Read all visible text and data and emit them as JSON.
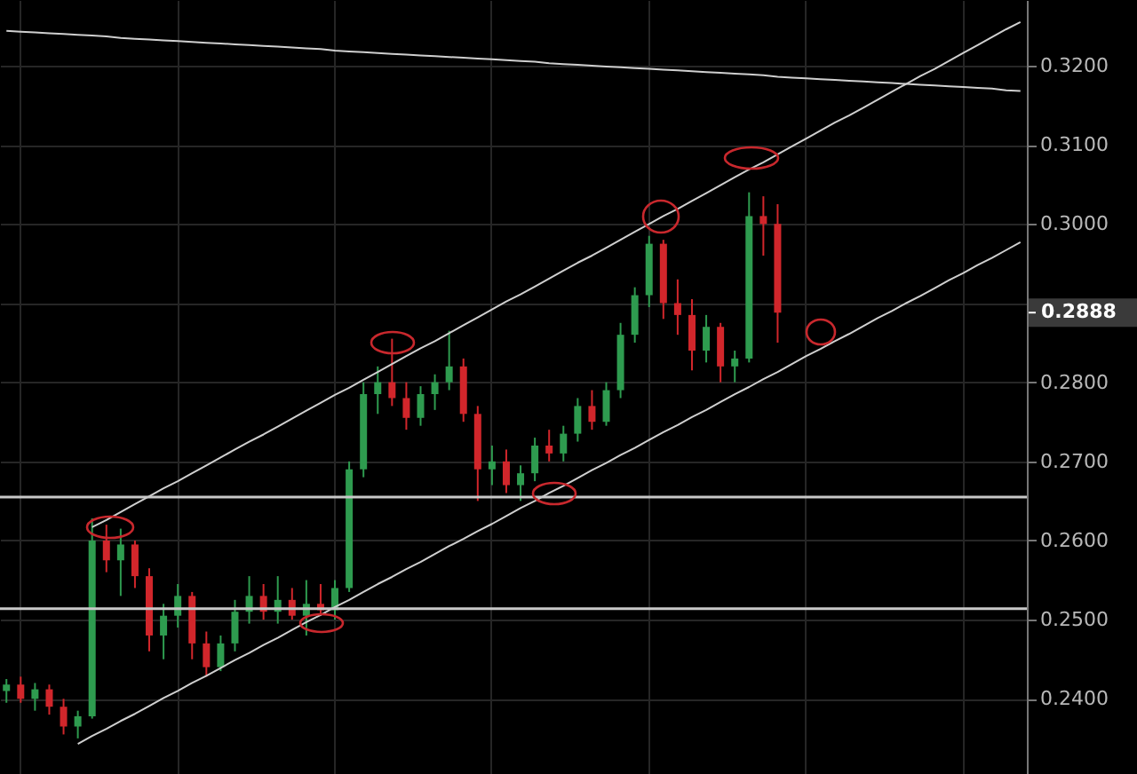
{
  "chart_data": {
    "type": "candlestick",
    "categories": [
      null,
      null,
      null,
      null,
      null,
      null,
      null,
      null,
      null,
      null,
      null,
      null,
      null,
      null,
      null,
      null,
      null,
      null,
      null,
      null,
      null,
      null,
      null,
      null,
      null,
      null,
      null,
      null,
      null,
      null,
      null,
      null,
      null,
      null,
      null,
      null,
      null,
      null,
      null,
      null,
      null,
      null,
      null,
      null,
      null,
      null,
      null,
      null,
      null,
      null,
      null,
      null,
      null,
      null,
      null,
      null,
      null,
      null,
      null,
      null,
      null,
      null,
      null,
      null,
      null,
      null,
      null,
      null,
      null,
      null,
      null,
      null
    ],
    "ohlc": [
      [
        0.241,
        0.2425,
        0.2395,
        0.2418
      ],
      [
        0.2418,
        0.2428,
        0.2395,
        0.24
      ],
      [
        0.24,
        0.242,
        0.2385,
        0.2412
      ],
      [
        0.2412,
        0.2418,
        0.238,
        0.239
      ],
      [
        0.239,
        0.24,
        0.2355,
        0.2365
      ],
      [
        0.2365,
        0.2385,
        0.235,
        0.2378
      ],
      [
        0.2378,
        0.2628,
        0.2375,
        0.26
      ],
      [
        0.26,
        0.262,
        0.256,
        0.2575
      ],
      [
        0.2575,
        0.2615,
        0.253,
        0.2595
      ],
      [
        0.2595,
        0.26,
        0.254,
        0.2555
      ],
      [
        0.2555,
        0.2565,
        0.246,
        0.248
      ],
      [
        0.248,
        0.252,
        0.245,
        0.2505
      ],
      [
        0.2505,
        0.2545,
        0.249,
        0.253
      ],
      [
        0.253,
        0.2535,
        0.245,
        0.247
      ],
      [
        0.247,
        0.2485,
        0.2428,
        0.244
      ],
      [
        0.244,
        0.248,
        0.2435,
        0.247
      ],
      [
        0.247,
        0.2525,
        0.246,
        0.251
      ],
      [
        0.251,
        0.2555,
        0.2495,
        0.253
      ],
      [
        0.253,
        0.2545,
        0.25,
        0.251
      ],
      [
        0.251,
        0.2555,
        0.2495,
        0.2525
      ],
      [
        0.2525,
        0.254,
        0.25,
        0.2505
      ],
      [
        0.2505,
        0.255,
        0.248,
        0.252
      ],
      [
        0.252,
        0.2545,
        0.2505,
        0.2512
      ],
      [
        0.2512,
        0.255,
        0.25,
        0.254
      ],
      [
        0.254,
        0.27,
        0.2535,
        0.269
      ],
      [
        0.269,
        0.28,
        0.268,
        0.2785
      ],
      [
        0.2785,
        0.282,
        0.276,
        0.28
      ],
      [
        0.28,
        0.2855,
        0.277,
        0.278
      ],
      [
        0.278,
        0.28,
        0.274,
        0.2755
      ],
      [
        0.2755,
        0.2795,
        0.2745,
        0.2785
      ],
      [
        0.2785,
        0.281,
        0.2765,
        0.28
      ],
      [
        0.28,
        0.2865,
        0.279,
        0.282
      ],
      [
        0.282,
        0.283,
        0.275,
        0.276
      ],
      [
        0.276,
        0.277,
        0.265,
        0.269
      ],
      [
        0.269,
        0.272,
        0.267,
        0.27
      ],
      [
        0.27,
        0.2715,
        0.266,
        0.267
      ],
      [
        0.267,
        0.2695,
        0.265,
        0.2685
      ],
      [
        0.2685,
        0.273,
        0.2675,
        0.272
      ],
      [
        0.272,
        0.274,
        0.27,
        0.271
      ],
      [
        0.271,
        0.2745,
        0.27,
        0.2735
      ],
      [
        0.2735,
        0.278,
        0.2725,
        0.277
      ],
      [
        0.277,
        0.279,
        0.274,
        0.275
      ],
      [
        0.275,
        0.28,
        0.2745,
        0.279
      ],
      [
        0.279,
        0.2875,
        0.278,
        0.286
      ],
      [
        0.286,
        0.292,
        0.285,
        0.291
      ],
      [
        0.291,
        0.2985,
        0.2895,
        0.2975
      ],
      [
        0.2975,
        0.298,
        0.288,
        0.29
      ],
      [
        0.29,
        0.293,
        0.286,
        0.2885
      ],
      [
        0.2885,
        0.2905,
        0.2815,
        0.284
      ],
      [
        0.284,
        0.2885,
        0.2825,
        0.287
      ],
      [
        0.287,
        0.2875,
        0.28,
        0.282
      ],
      [
        0.282,
        0.284,
        0.28,
        0.283
      ],
      [
        0.283,
        0.304,
        0.2825,
        0.301
      ],
      [
        0.301,
        0.3035,
        0.296,
        0.3
      ],
      [
        0.3,
        0.3025,
        0.285,
        0.2888
      ],
      null,
      null,
      null,
      null,
      null,
      null,
      null,
      null,
      null,
      null,
      null,
      null,
      null,
      null,
      null,
      null,
      null
    ],
    "colors": [
      "#2e9b4f",
      "#d1262b",
      "#2e9b4f",
      "#d1262b",
      "#d1262b",
      "#2e9b4f",
      "#2e9b4f",
      "#d1262b",
      "#2e9b4f",
      "#d1262b",
      "#d1262b",
      "#2e9b4f",
      "#2e9b4f",
      "#d1262b",
      "#d1262b",
      "#2e9b4f",
      "#2e9b4f",
      "#2e9b4f",
      "#d1262b",
      "#2e9b4f",
      "#d1262b",
      "#2e9b4f",
      "#d1262b",
      "#2e9b4f",
      "#2e9b4f",
      "#2e9b4f",
      "#2e9b4f",
      "#d1262b",
      "#d1262b",
      "#2e9b4f",
      "#2e9b4f",
      "#2e9b4f",
      "#d1262b",
      "#d1262b",
      "#2e9b4f",
      "#d1262b",
      "#2e9b4f",
      "#2e9b4f",
      "#d1262b",
      "#2e9b4f",
      "#2e9b4f",
      "#d1262b",
      "#2e9b4f",
      "#2e9b4f",
      "#2e9b4f",
      "#2e9b4f",
      "#d1262b",
      "#d1262b",
      "#d1262b",
      "#2e9b4f",
      "#d1262b",
      "#2e9b4f",
      "#2e9b4f",
      "#d1262b",
      "#d1262b",
      null,
      null,
      null,
      null,
      null,
      null,
      null,
      null,
      null,
      null,
      null,
      null,
      null,
      null,
      null,
      null,
      null
    ],
    "series": [
      {
        "type": "line",
        "color": "#cfcfcf",
        "values": [
          0.3244,
          0.3243,
          0.3242,
          0.3241,
          0.324,
          0.3239,
          0.3238,
          0.3237,
          0.3235,
          0.3234,
          0.3233,
          0.3232,
          0.3231,
          0.323,
          0.3229,
          0.3228,
          0.3227,
          0.3226,
          0.3225,
          0.3224,
          0.3223,
          0.3222,
          0.3221,
          0.3219,
          0.3218,
          0.3217,
          0.3216,
          0.3215,
          0.3214,
          0.3213,
          0.3212,
          0.3211,
          0.321,
          0.3209,
          0.3208,
          0.3207,
          0.3206,
          0.3205,
          0.3203,
          0.3202,
          0.3201,
          0.32,
          0.3199,
          0.3198,
          0.3197,
          0.3196,
          0.3195,
          0.3194,
          0.3193,
          0.3192,
          0.3191,
          0.319,
          0.3189,
          0.3188,
          0.3186,
          0.3185,
          0.3184,
          0.3183,
          0.3182,
          0.3181,
          0.318,
          0.3179,
          0.3178,
          0.3177,
          0.3176,
          0.3175,
          0.3174,
          0.3173,
          0.3172,
          0.3171,
          0.3169,
          0.3168
        ]
      },
      {
        "type": "line",
        "color": "#cfcfcf",
        "values": [
          null,
          null,
          null,
          null,
          null,
          null,
          0.2617,
          0.2626,
          0.2636,
          0.2646,
          0.2656,
          0.2666,
          0.2675,
          0.2685,
          0.2695,
          0.2705,
          0.2715,
          0.2725,
          0.2734,
          0.2744,
          0.2754,
          0.2764,
          0.2774,
          0.2784,
          0.2793,
          0.2803,
          0.2813,
          0.2823,
          0.2833,
          0.2843,
          0.2852,
          0.2862,
          0.2872,
          0.2882,
          0.2892,
          0.2902,
          0.2911,
          0.2921,
          0.2931,
          0.2941,
          0.2951,
          0.296,
          0.297,
          0.298,
          0.299,
          0.3,
          0.301,
          0.3019,
          0.3029,
          0.3039,
          0.3049,
          0.3059,
          0.3069,
          0.3078,
          0.3088,
          0.3098,
          0.3108,
          0.3118,
          0.3128,
          0.3137,
          0.3147,
          0.3157,
          0.3167,
          0.3177,
          0.3187,
          0.3196,
          0.3206,
          0.3216,
          0.3226,
          0.3236,
          0.3246,
          0.3255
        ]
      },
      {
        "type": "line",
        "color": "#cfcfcf",
        "values": [
          null,
          null,
          null,
          null,
          null,
          0.2343,
          0.2353,
          0.2362,
          0.2372,
          0.2381,
          0.2391,
          0.2401,
          0.241,
          0.242,
          0.2429,
          0.2439,
          0.2449,
          0.2458,
          0.2468,
          0.2477,
          0.2487,
          0.2497,
          0.2506,
          0.2516,
          0.2525,
          0.2535,
          0.2545,
          0.2554,
          0.2564,
          0.2573,
          0.2583,
          0.2593,
          0.2602,
          0.2612,
          0.2621,
          0.2631,
          0.2641,
          0.265,
          0.266,
          0.2669,
          0.2679,
          0.2689,
          0.2698,
          0.2708,
          0.2717,
          0.2727,
          0.2737,
          0.2746,
          0.2756,
          0.2765,
          0.2775,
          0.2785,
          0.2794,
          0.2804,
          0.2813,
          0.2823,
          0.2833,
          0.2842,
          0.2852,
          0.2861,
          0.2871,
          0.2881,
          0.289,
          0.29,
          0.2909,
          0.2919,
          0.2929,
          0.2938,
          0.2948,
          0.2957,
          0.2967,
          0.2977
        ]
      }
    ],
    "ref_lines": [
      {
        "axis": "y",
        "value": 0.2655,
        "color": "#c8c8c8"
      },
      {
        "axis": "y",
        "value": 0.2514,
        "color": "#c8c8c8"
      }
    ],
    "annotations": [
      "0.2888"
    ],
    "ylim": [
      0.2305,
      0.3283
    ],
    "yticks": [
      {
        "value": 0.24,
        "label": "0.2400"
      },
      {
        "value": 0.25,
        "label": "0.2500"
      },
      {
        "value": 0.26,
        "label": "0.2600"
      },
      {
        "value": 0.27,
        "label": "0.2700"
      },
      {
        "value": 0.28,
        "label": "0.2800"
      },
      {
        "value": 0.29,
        "label": null
      },
      {
        "value": 0.3,
        "label": "0.3000"
      },
      {
        "value": 0.31,
        "label": "0.3100"
      },
      {
        "value": 0.32,
        "label": "0.3200"
      }
    ],
    "grid": true,
    "tick_labels": "y"
  }
}
